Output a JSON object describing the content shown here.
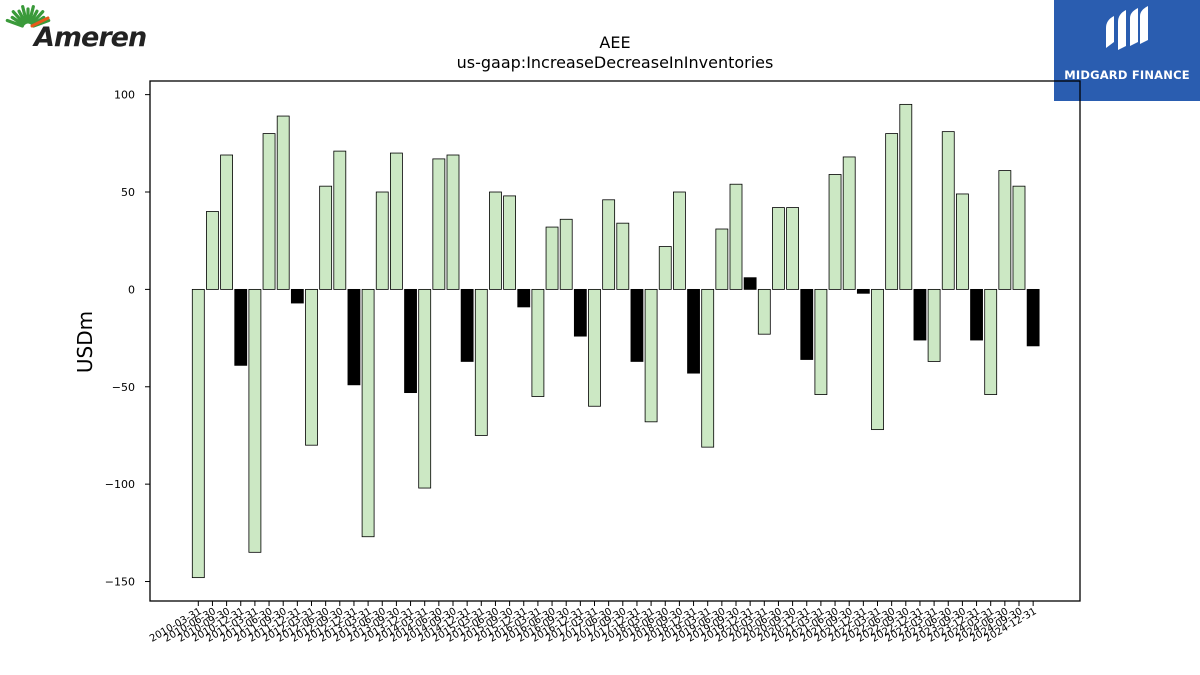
{
  "logos": {
    "left_brand": "Ameren",
    "right_brand": "MIDGARD FINANCE"
  },
  "colors": {
    "positive_bar": "#cce8c4",
    "negative_bar": "#000000",
    "bar_edge": "#000000",
    "brand_green": "#3a9a3a",
    "brand_orange": "#e85a1a",
    "midgard_blue": "#2a5db0"
  },
  "chart_data": {
    "type": "bar",
    "title": "AEE",
    "subtitle": "us-gaap:IncreaseDecreaseInInventories",
    "xlabel": "",
    "ylabel": "USDm",
    "ylim": [
      -160,
      107
    ],
    "yticks": [
      100,
      50,
      0,
      -50,
      -100,
      -150
    ],
    "grid": false,
    "categories": [
      "2010-03-31",
      "2010-06-30",
      "2010-09-30",
      "2010-12-31",
      "2011-03-31",
      "2011-06-30",
      "2011-09-30",
      "2011-12-31",
      "2012-03-31",
      "2012-06-30",
      "2012-09-30",
      "2012-12-31",
      "2013-03-31",
      "2013-06-30",
      "2013-09-30",
      "2013-12-31",
      "2014-03-31",
      "2014-06-30",
      "2014-09-30",
      "2014-12-31",
      "2015-03-31",
      "2015-06-30",
      "2015-09-30",
      "2015-12-31",
      "2016-03-31",
      "2016-06-30",
      "2016-09-30",
      "2016-12-31",
      "2017-03-31",
      "2017-06-30",
      "2017-09-30",
      "2017-12-31",
      "2018-03-31",
      "2018-06-30",
      "2018-09-30",
      "2018-12-31",
      "2019-03-31",
      "2019-06-30",
      "2019-09-30",
      "2019-12-31",
      "2020-03-31",
      "2020-06-30",
      "2020-09-30",
      "2020-12-31",
      "2021-03-31",
      "2021-06-30",
      "2021-09-30",
      "2021-12-31",
      "2022-03-31",
      "2022-06-30",
      "2022-09-30",
      "2022-12-31",
      "2023-03-31",
      "2023-06-30",
      "2023-09-30",
      "2023-12-31",
      "2024-03-31",
      "2024-06-30",
      "2024-09-30",
      "2024-12-31"
    ],
    "values": [
      -148,
      40,
      69,
      -39,
      -135,
      80,
      89,
      -7,
      -80,
      53,
      71,
      -49,
      -127,
      50,
      70,
      -53,
      -102,
      67,
      69,
      -37,
      -75,
      50,
      48,
      -9,
      -55,
      32,
      36,
      -24,
      -60,
      46,
      34,
      -37,
      -68,
      22,
      50,
      -43,
      -81,
      31,
      54,
      6,
      -23,
      42,
      42,
      -36,
      -54,
      59,
      68,
      -2,
      -72,
      80,
      95,
      -26,
      -37,
      81,
      49,
      -26,
      -54,
      61,
      53,
      -29
    ]
  }
}
